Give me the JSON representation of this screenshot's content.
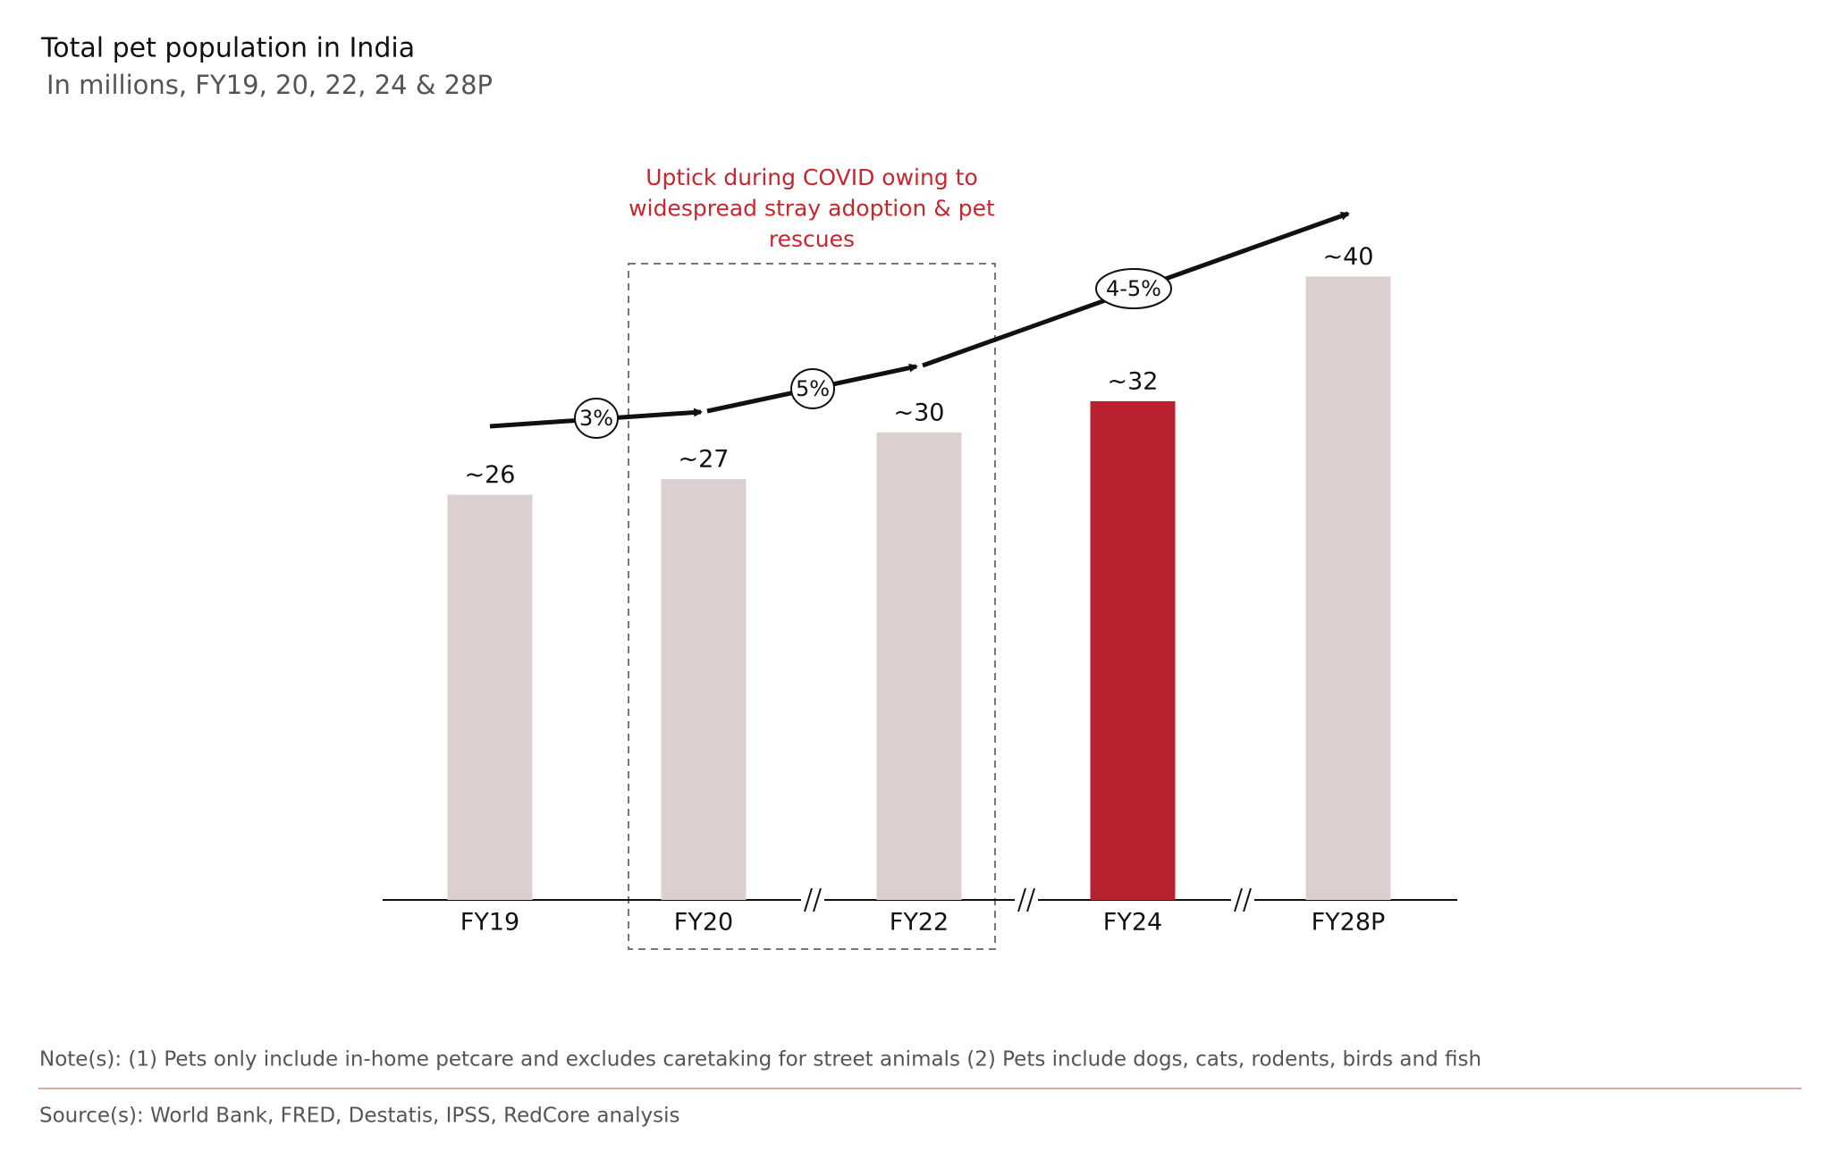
{
  "chart_data": {
    "type": "bar",
    "title": "Total pet population in India",
    "subtitle": "In millions, FY19, 20, 22, 24 & 28P",
    "categories": [
      "FY19",
      "FY20",
      "FY22",
      "FY24",
      "FY28P"
    ],
    "values": [
      26,
      27,
      30,
      32,
      40
    ],
    "value_labels": [
      "~26",
      "~27",
      "~30",
      "~32",
      "~40"
    ],
    "colors": [
      "#dccfd0",
      "#dccfd0",
      "#dccfd0",
      "#b8212e",
      "#dccfd0"
    ],
    "growth_labels": [
      "3%",
      "5%",
      "4-5%"
    ],
    "annotation_lines": [
      "Uptick during COVID owing to",
      "widespread stray adoption & pet",
      "rescues"
    ],
    "note": "Note(s): (1) Pets only include in-home petcare and excludes caretaking for street animals (2) Pets include dogs, cats, rodents, birds and fish",
    "source": "Source(s): World Bank, FRED,  Destatis, IPSS, RedCore analysis"
  }
}
